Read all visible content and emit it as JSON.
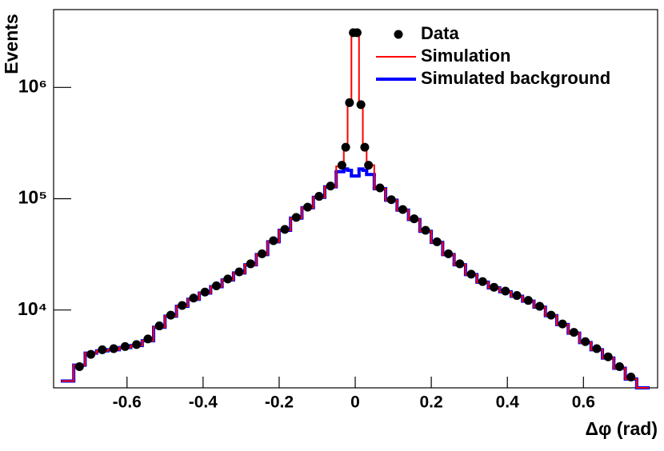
{
  "chart_data": {
    "type": "histogram-log",
    "xlabel": "Δφ (rad)",
    "ylabel": "Events",
    "xlim": [
      -0.793,
      0.795
    ],
    "ylim": [
      2000,
      5000000
    ],
    "log_y": true,
    "xticks": [
      -0.6,
      -0.4,
      -0.2,
      0,
      0.2,
      0.4,
      0.6
    ],
    "yticks": [
      {
        "value": 10000,
        "label": "10⁴"
      },
      {
        "value": 100000,
        "label": "10⁵"
      },
      {
        "value": 1000000,
        "label": "10⁶"
      }
    ],
    "legend": "top-right",
    "series": [
      {
        "name": "Data",
        "color": "#000000",
        "style": "markers",
        "x": [
          -0.725,
          -0.695,
          -0.665,
          -0.635,
          -0.605,
          -0.575,
          -0.545,
          -0.515,
          -0.485,
          -0.455,
          -0.425,
          -0.395,
          -0.365,
          -0.335,
          -0.305,
          -0.275,
          -0.245,
          -0.215,
          -0.185,
          -0.155,
          -0.125,
          -0.095,
          -0.065,
          -0.035,
          -0.025,
          -0.015,
          -0.005,
          0.005,
          0.015,
          0.025,
          0.035,
          0.065,
          0.095,
          0.125,
          0.155,
          0.185,
          0.215,
          0.245,
          0.275,
          0.305,
          0.335,
          0.365,
          0.395,
          0.425,
          0.455,
          0.485,
          0.515,
          0.545,
          0.575,
          0.605,
          0.635,
          0.665,
          0.695,
          0.725
        ],
        "values": [
          3100,
          4000,
          4400,
          4500,
          4700,
          4900,
          5500,
          7200,
          9000,
          11000,
          12800,
          14500,
          16500,
          19000,
          22000,
          26000,
          32000,
          42000,
          53000,
          68000,
          84000,
          105000,
          130000,
          200000,
          290000,
          730000,
          3100000,
          3100000,
          700000,
          290000,
          200000,
          125000,
          98000,
          80000,
          66000,
          52000,
          41000,
          32000,
          26000,
          21000,
          18000,
          16000,
          14800,
          13500,
          12200,
          10800,
          9000,
          7500,
          6300,
          5200,
          4500,
          3800,
          3100,
          2500
        ]
      },
      {
        "name": "Simulation",
        "color": "#ff0000",
        "style": "steps",
        "width": 2,
        "x": [
          -0.755,
          -0.725,
          -0.695,
          -0.665,
          -0.635,
          -0.605,
          -0.575,
          -0.545,
          -0.515,
          -0.485,
          -0.455,
          -0.425,
          -0.395,
          -0.365,
          -0.335,
          -0.305,
          -0.275,
          -0.245,
          -0.215,
          -0.185,
          -0.155,
          -0.125,
          -0.095,
          -0.065,
          -0.035,
          -0.025,
          -0.015,
          -0.005,
          0.005,
          0.015,
          0.025,
          0.035,
          0.065,
          0.095,
          0.125,
          0.155,
          0.185,
          0.215,
          0.245,
          0.275,
          0.305,
          0.335,
          0.365,
          0.395,
          0.425,
          0.455,
          0.485,
          0.515,
          0.545,
          0.575,
          0.605,
          0.635,
          0.665,
          0.695,
          0.725,
          0.755
        ],
        "values": [
          2300,
          3200,
          4100,
          4300,
          4400,
          4600,
          4800,
          5300,
          7000,
          8800,
          10800,
          12500,
          14200,
          16200,
          18600,
          21500,
          25500,
          31500,
          41000,
          52000,
          67000,
          83000,
          103000,
          128000,
          195000,
          300000,
          730000,
          3000000,
          3000000,
          720000,
          300000,
          200000,
          123000,
          97000,
          79000,
          65000,
          51000,
          40500,
          31500,
          25500,
          20800,
          17800,
          15800,
          14600,
          13300,
          12000,
          10600,
          8900,
          7400,
          6200,
          5100,
          4400,
          3700,
          3000,
          2400,
          2000
        ]
      },
      {
        "name": "Simulated background",
        "color": "#0000ff",
        "style": "steps",
        "width": 4,
        "x": [
          -0.755,
          -0.725,
          -0.695,
          -0.665,
          -0.635,
          -0.605,
          -0.575,
          -0.545,
          -0.515,
          -0.485,
          -0.455,
          -0.425,
          -0.395,
          -0.365,
          -0.335,
          -0.305,
          -0.275,
          -0.245,
          -0.215,
          -0.185,
          -0.155,
          -0.125,
          -0.095,
          -0.065,
          -0.035,
          -0.025,
          -0.015,
          -0.005,
          0.005,
          0.015,
          0.025,
          0.035,
          0.065,
          0.095,
          0.125,
          0.155,
          0.185,
          0.215,
          0.245,
          0.275,
          0.305,
          0.335,
          0.365,
          0.395,
          0.425,
          0.455,
          0.485,
          0.515,
          0.545,
          0.575,
          0.605,
          0.635,
          0.665,
          0.695,
          0.725,
          0.755
        ],
        "values": [
          2300,
          3200,
          4100,
          4300,
          4400,
          4600,
          4800,
          5300,
          7000,
          8800,
          10800,
          12500,
          14200,
          16200,
          18600,
          21500,
          25500,
          31500,
          41000,
          52000,
          67000,
          83000,
          103000,
          128000,
          175000,
          185000,
          180000,
          160000,
          160000,
          185000,
          180000,
          165000,
          123000,
          97000,
          79000,
          65000,
          51000,
          40500,
          31500,
          25500,
          20800,
          17800,
          15800,
          14600,
          13300,
          12000,
          10600,
          8900,
          7400,
          6200,
          5100,
          4400,
          3700,
          3000,
          2400,
          2000
        ]
      }
    ]
  }
}
